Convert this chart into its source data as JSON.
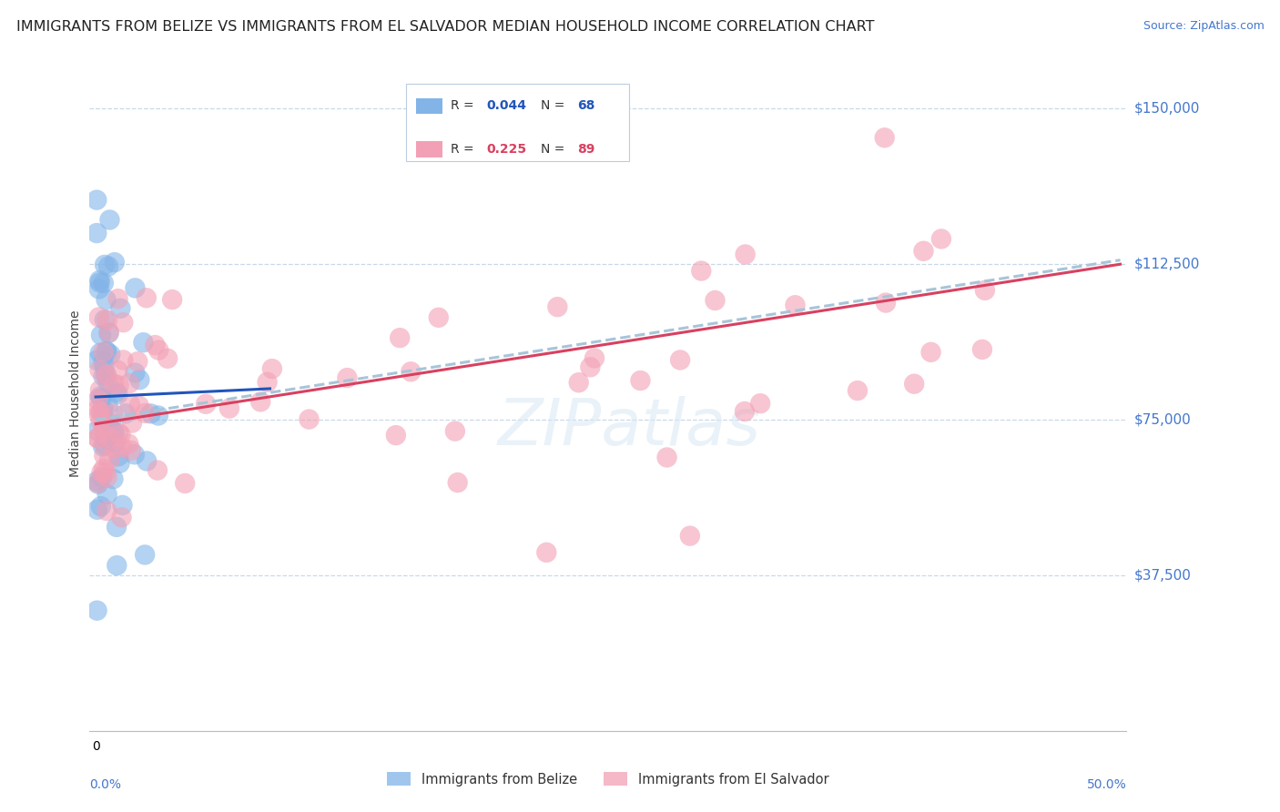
{
  "title": "IMMIGRANTS FROM BELIZE VS IMMIGRANTS FROM EL SALVADOR MEDIAN HOUSEHOLD INCOME CORRELATION CHART",
  "source": "Source: ZipAtlas.com",
  "ylabel": "Median Household Income",
  "ylim": [
    0,
    162500
  ],
  "xlim": [
    -0.003,
    0.503
  ],
  "belize_color": "#82b4e8",
  "salvador_color": "#f2a0b5",
  "trend_blue_color": "#2255bb",
  "trend_pink_color": "#d94060",
  "trend_gray_color": "#a8c4d8",
  "background_color": "#ffffff",
  "grid_color": "#c8d8e8",
  "title_fontsize": 11.5,
  "source_fontsize": 9,
  "axis_label_color": "#4477cc",
  "ylabel_fontsize": 10,
  "legend_R1": "0.044",
  "legend_N1": "68",
  "legend_R2": "0.225",
  "legend_N2": "89",
  "blue_trend_x": [
    0.0,
    0.085
  ],
  "blue_trend_y": [
    80500,
    82500
  ],
  "pink_trend_x": [
    0.0,
    0.5
  ],
  "pink_trend_y": [
    74000,
    112500
  ],
  "gray_trend_x": [
    0.0,
    0.5
  ],
  "gray_trend_y": [
    75000,
    113500
  ],
  "ytick_vals": [
    37500,
    75000,
    112500,
    150000
  ],
  "ytick_labels": [
    "$37,500",
    "$75,000",
    "$112,500",
    "$150,000"
  ]
}
